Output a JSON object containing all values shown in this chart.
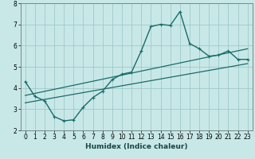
{
  "title": "",
  "xlabel": "Humidex (Indice chaleur)",
  "ylabel": "",
  "xlim": [
    -0.5,
    23.5
  ],
  "ylim": [
    2,
    8
  ],
  "xticks": [
    0,
    1,
    2,
    3,
    4,
    5,
    6,
    7,
    8,
    9,
    10,
    11,
    12,
    13,
    14,
    15,
    16,
    17,
    18,
    19,
    20,
    21,
    22,
    23
  ],
  "yticks": [
    2,
    3,
    4,
    5,
    6,
    7,
    8
  ],
  "bg_color": "#c8e8e8",
  "grid_color": "#a0c8c8",
  "line_color": "#1a6b6b",
  "main_x": [
    0,
    1,
    2,
    3,
    4,
    5,
    6,
    7,
    8,
    9,
    10,
    11,
    12,
    13,
    14,
    15,
    16,
    17,
    18,
    19,
    20,
    21,
    22,
    23
  ],
  "main_y": [
    4.3,
    3.6,
    3.4,
    2.65,
    2.45,
    2.5,
    3.1,
    3.55,
    3.85,
    4.4,
    4.65,
    4.75,
    5.75,
    6.9,
    7.0,
    6.95,
    7.6,
    6.1,
    5.85,
    5.5,
    5.55,
    5.75,
    5.35,
    5.35
  ],
  "trend1_x": [
    0,
    23
  ],
  "trend1_y": [
    3.65,
    5.85
  ],
  "trend2_x": [
    0,
    23
  ],
  "trend2_y": [
    3.3,
    5.15
  ],
  "markersize": 3.5,
  "linewidth": 1.0,
  "trend_linewidth": 0.9,
  "tick_fontsize": 5.5,
  "xlabel_fontsize": 6.5
}
